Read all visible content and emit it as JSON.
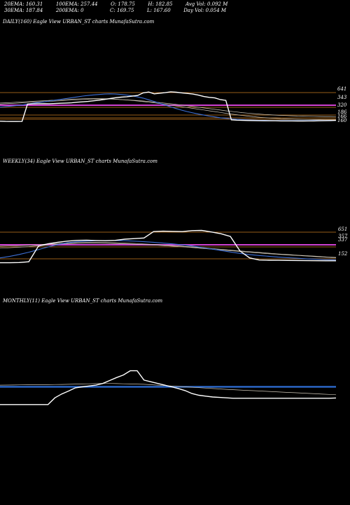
{
  "header": {
    "row1": [
      {
        "label": "20EMA:",
        "value": "160.31"
      },
      {
        "label": "100EMA:",
        "value": "257.44"
      },
      {
        "label": "O:",
        "value": "178.75"
      },
      {
        "label": "H:",
        "value": "182.85"
      },
      {
        "label": "Avg Vol:",
        "value": "0.092  M"
      }
    ],
    "row2": [
      {
        "label": "30EMA:",
        "value": "187.84"
      },
      {
        "label": "200EMA:",
        "value": "0"
      },
      {
        "label": "C:",
        "value": "169.75"
      },
      {
        "label": "L:",
        "value": "167.60"
      },
      {
        "label": "Day Vol:",
        "value": "0.054  M"
      }
    ]
  },
  "colors": {
    "background": "#000000",
    "price": "#ffffff",
    "ema_fast": "#3d6fd6",
    "ema_light": "#cfc7b8",
    "level_orange": "#c87a22",
    "level_magenta": "#d040d0",
    "level_blue": "#2f6fd8"
  },
  "chart_data": [
    {
      "type": "line",
      "title": "DAILY(160) Eagle  View  URBAN_ST charts MunafaSutra.com",
      "right_labels": [
        "641",
        "343",
        "320",
        "186",
        "166",
        "160"
      ],
      "series": [
        {
          "role": "price",
          "values": [
            162,
            160,
            159,
            159,
            160,
            330,
            332,
            333,
            334,
            333,
            335,
            338,
            340,
            342,
            348,
            352,
            356,
            362,
            368,
            376,
            384,
            392,
            398,
            402,
            408,
            414,
            440,
            448,
            430,
            436,
            442,
            450,
            446,
            440,
            434,
            428,
            418,
            404,
            396,
            390,
            374,
            366,
            176,
            172,
            170,
            169,
            168,
            167,
            166,
            166,
            166,
            165,
            165,
            165,
            164,
            164,
            165,
            165,
            166,
            167,
            168,
            170
          ]
        },
        {
          "role": "ema-fast",
          "values": [
            300,
            305,
            310,
            315,
            320,
            330,
            338,
            345,
            352,
            360,
            368,
            376,
            384,
            392,
            400,
            408,
            414,
            420,
            424,
            428,
            430,
            428,
            424,
            418,
            410,
            400,
            388,
            372,
            356,
            338,
            320,
            302,
            286,
            270,
            256,
            244,
            232,
            222,
            212,
            204,
            196,
            190,
            185,
            181,
            178,
            175,
            173,
            171,
            170,
            169,
            168,
            168,
            168,
            168,
            168,
            168,
            168,
            169,
            169,
            169,
            170,
            170
          ]
        },
        {
          "role": "ema-slow",
          "values": [
            340,
            342,
            345,
            348,
            351,
            354,
            357,
            360,
            363,
            366,
            369,
            372,
            375,
            378,
            380,
            382,
            383,
            384,
            384,
            383,
            381,
            378,
            374,
            370,
            365,
            360,
            354,
            348,
            342,
            335,
            328,
            320,
            312,
            304,
            296,
            288,
            280,
            272,
            264,
            256,
            248,
            240,
            232,
            225,
            218,
            212,
            206,
            201,
            197,
            193,
            190,
            187,
            185,
            183,
            181,
            180,
            179,
            178,
            177,
            176,
            175,
            175
          ]
        },
        {
          "role": "ema-light",
          "values": [
            330,
            333,
            336,
            339,
            342,
            345,
            348,
            351,
            354,
            357,
            360,
            363,
            366,
            369,
            372,
            375,
            377,
            379,
            380,
            380,
            379,
            377,
            374,
            371,
            368,
            364,
            360,
            355,
            350,
            345,
            339,
            333,
            327,
            320,
            313,
            306,
            299,
            292,
            285,
            278,
            271,
            264,
            258,
            252,
            246,
            241,
            236,
            232,
            228,
            225,
            222,
            219,
            217,
            215,
            213,
            212,
            211,
            210,
            209,
            208,
            208,
            207
          ]
        }
      ],
      "levels": [
        {
          "value": 641,
          "color": "orange"
        },
        {
          "value": 343,
          "color": "magenta"
        },
        {
          "value": 320,
          "color": "orange"
        },
        {
          "value": 186,
          "color": "orange"
        },
        {
          "value": 166,
          "color": "orange"
        },
        {
          "value": 160,
          "color": "orange"
        }
      ]
    },
    {
      "type": "line",
      "title": "WEEKLY(34) Eagle  View  URBAN_ST charts MunafaSutra.com",
      "right_labels": [
        "651",
        "357",
        "337",
        "152"
      ],
      "series": [
        {
          "role": "price",
          "values": [
            150,
            150,
            152,
            160,
            320,
            345,
            360,
            372,
            380,
            382,
            378,
            376,
            380,
            392,
            398,
            404,
            470,
            474,
            472,
            470,
            480,
            482,
            466,
            448,
            420,
            270,
            200,
            178,
            176,
            175,
            174,
            173,
            172,
            171,
            170,
            170
          ]
        },
        {
          "role": "ema-fast",
          "values": [
            200,
            215,
            235,
            258,
            285,
            312,
            336,
            355,
            366,
            372,
            376,
            378,
            378,
            376,
            372,
            366,
            360,
            352,
            344,
            334,
            322,
            308,
            292,
            276,
            260,
            246,
            234,
            224,
            216,
            208,
            202,
            196,
            190,
            186,
            182,
            179
          ]
        },
        {
          "role": "ema-slow",
          "values": [
            320,
            322,
            326,
            330,
            336,
            342,
            348,
            352,
            356,
            358,
            358,
            357,
            355,
            352,
            348,
            343,
            338,
            332,
            326,
            320,
            312,
            304,
            296,
            288,
            280,
            272,
            264,
            256,
            248,
            240,
            234,
            228,
            222,
            216,
            210,
            205
          ]
        },
        {
          "role": "ema-light",
          "values": [
            300,
            304,
            310,
            316,
            324,
            332,
            340,
            346,
            350,
            352,
            352,
            350,
            348,
            344,
            340,
            336,
            332,
            326,
            320,
            314,
            306,
            298,
            290,
            282,
            274,
            266,
            258,
            250,
            242,
            236,
            230,
            224,
            218,
            212,
            206,
            200
          ]
        }
      ],
      "levels": [
        {
          "value": 651,
          "color": "orange"
        },
        {
          "value": 357,
          "color": "magenta"
        },
        {
          "value": 337,
          "color": "orange"
        },
        {
          "value": 152,
          "color": "orange"
        }
      ]
    },
    {
      "type": "line",
      "title": "MONTHLY(11) Eagle  View  URBAN_ST charts MunafaSutra.com",
      "right_labels": [],
      "series": [
        {
          "role": "price",
          "values": [
            70,
            70,
            70,
            70,
            70,
            70,
            70,
            70,
            150,
            195,
            230,
            268,
            280,
            290,
            300,
            320,
            355,
            390,
            420,
            470,
            470,
            360,
            340,
            320,
            300,
            280,
            260,
            235,
            200,
            180,
            170,
            160,
            155,
            150,
            145,
            145,
            145,
            145,
            145,
            145,
            145,
            145,
            145,
            145,
            145,
            145,
            145,
            145,
            145,
            148
          ]
        },
        {
          "role": "ema-fast",
          "values": [
            280,
            280,
            280,
            280,
            280,
            280,
            280,
            280,
            280,
            280,
            280,
            280,
            280,
            280,
            280,
            280,
            280,
            280,
            280,
            280,
            280,
            280,
            280,
            280,
            280,
            280,
            280,
            280,
            280,
            280,
            280,
            280,
            280,
            280,
            280,
            280,
            280,
            280,
            280,
            280,
            280,
            280,
            280,
            280,
            280,
            280,
            280,
            280,
            280,
            280
          ]
        },
        {
          "role": "ema-light",
          "values": [
            300,
            301,
            302,
            303,
            304,
            305,
            306,
            306,
            307,
            308,
            310,
            312,
            314,
            316,
            318,
            320,
            320,
            318,
            316,
            314,
            312,
            310,
            305,
            300,
            295,
            290,
            285,
            280,
            275,
            270,
            265,
            260,
            255,
            250,
            246,
            242,
            238,
            234,
            230,
            226,
            222,
            218,
            214,
            210,
            206,
            202,
            198,
            194,
            190,
            186
          ]
        }
      ],
      "levels": []
    }
  ]
}
